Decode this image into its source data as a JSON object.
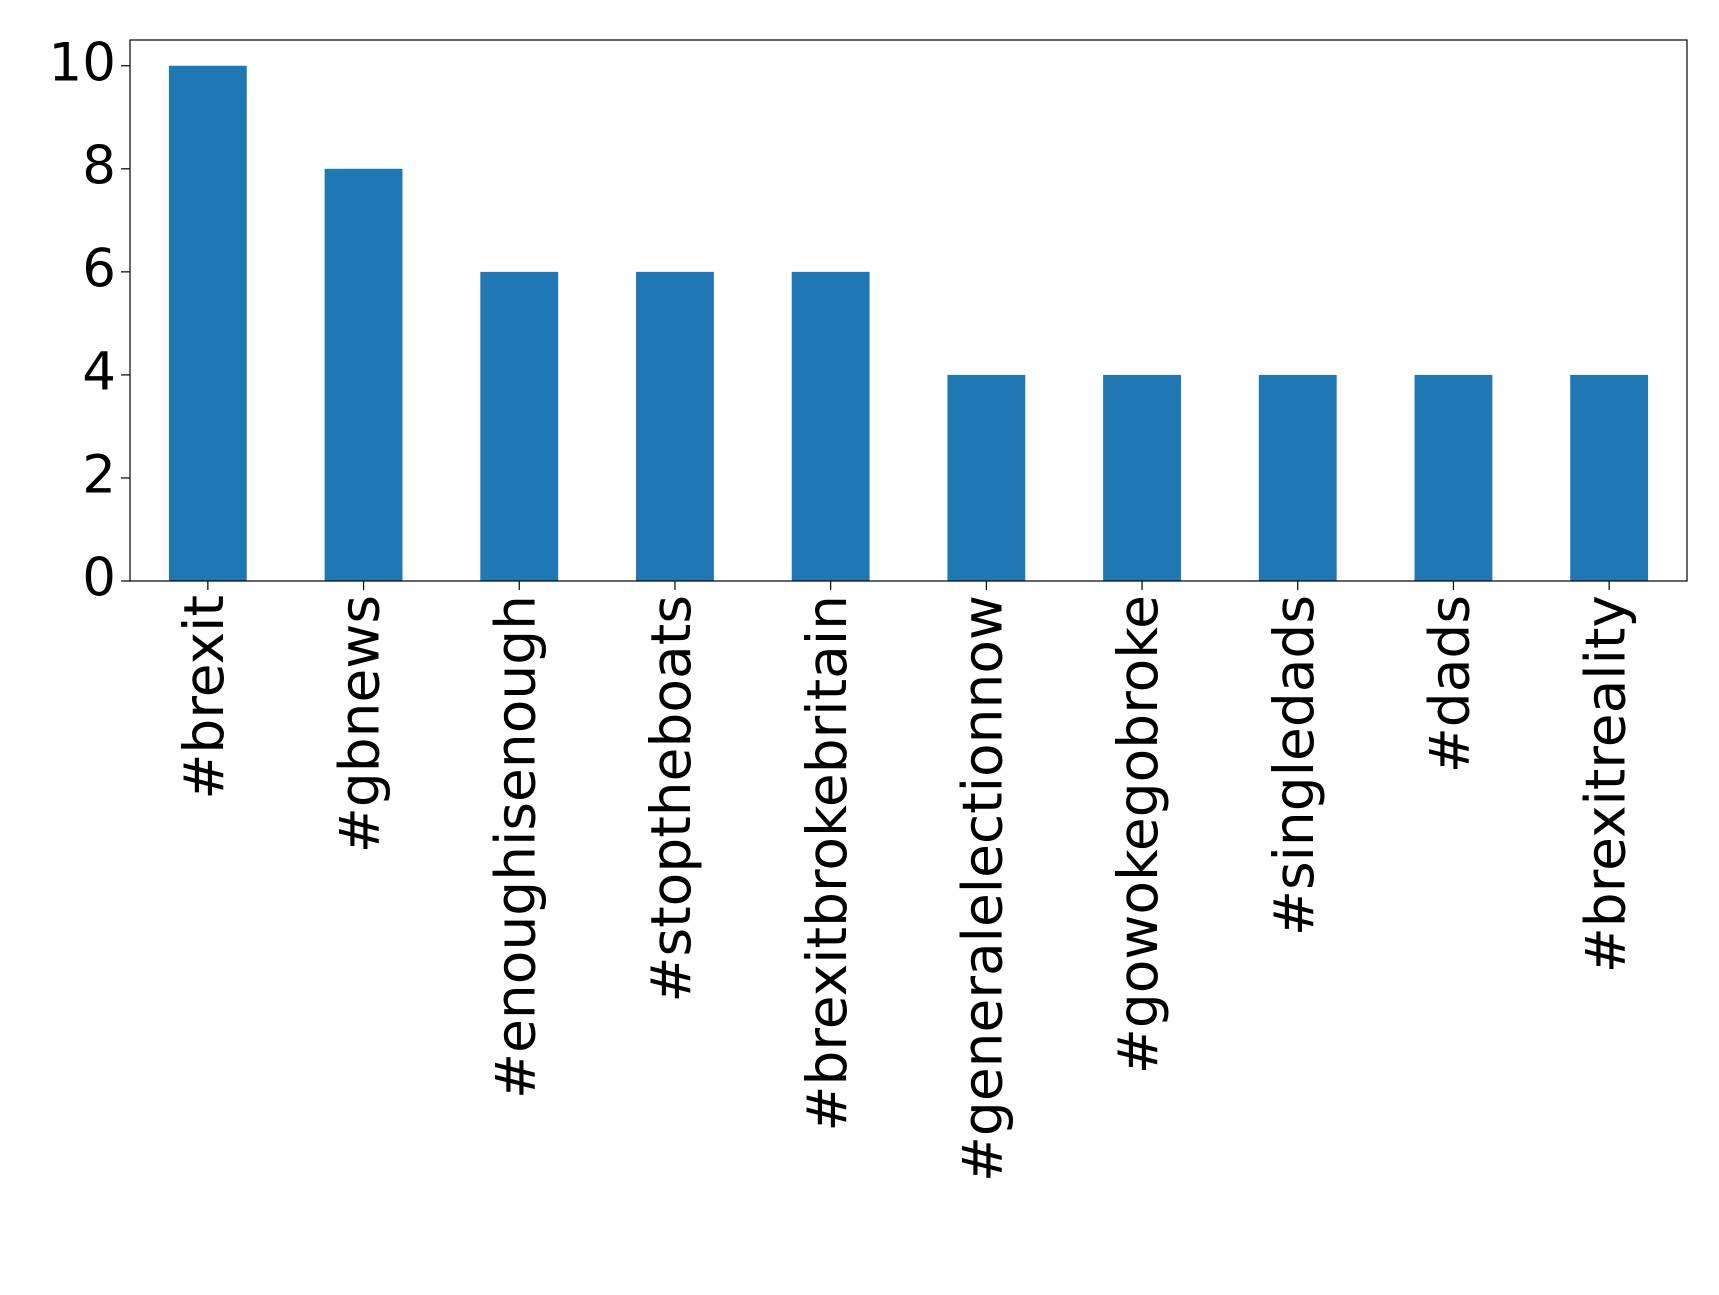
{
  "chart_data": {
    "type": "bar",
    "categories": [
      "#brexit",
      "#gbnews",
      "#enoughisenough",
      "#stoptheboats",
      "#brexitbrokebritain",
      "#generalelectionnow",
      "#gowokegobroke",
      "#singledads",
      "#dads",
      "#brexitreality"
    ],
    "values": [
      10,
      8,
      6,
      6,
      6,
      4,
      4,
      4,
      4,
      4
    ],
    "color": "#1f77b4",
    "ylim": [
      0,
      10.5
    ],
    "yticks": [
      0,
      2,
      4,
      6,
      8,
      10
    ],
    "grid": false
  }
}
